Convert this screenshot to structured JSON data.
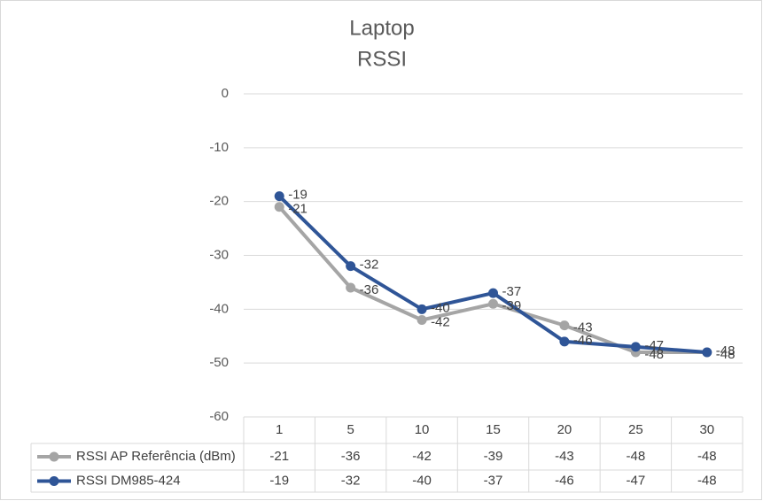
{
  "chart_data": {
    "type": "line",
    "title": "Laptop",
    "subtitle": "RSSI",
    "categories": [
      "1",
      "5",
      "10",
      "15",
      "20",
      "25",
      "30"
    ],
    "series": [
      {
        "name": "RSSI AP Referência (dBm)",
        "color": "#a5a5a5",
        "values": [
          -21,
          -36,
          -42,
          -39,
          -43,
          -48,
          -48
        ]
      },
      {
        "name": "RSSI DM985-424",
        "color": "#2f5597",
        "values": [
          -19,
          -32,
          -40,
          -37,
          -46,
          -47,
          -48
        ]
      }
    ],
    "ylim": [
      -60,
      0
    ],
    "yticks": [
      0,
      -10,
      -20,
      -30,
      -40,
      -50,
      -60
    ],
    "grid": true,
    "data_labels": true,
    "data_table": true
  }
}
